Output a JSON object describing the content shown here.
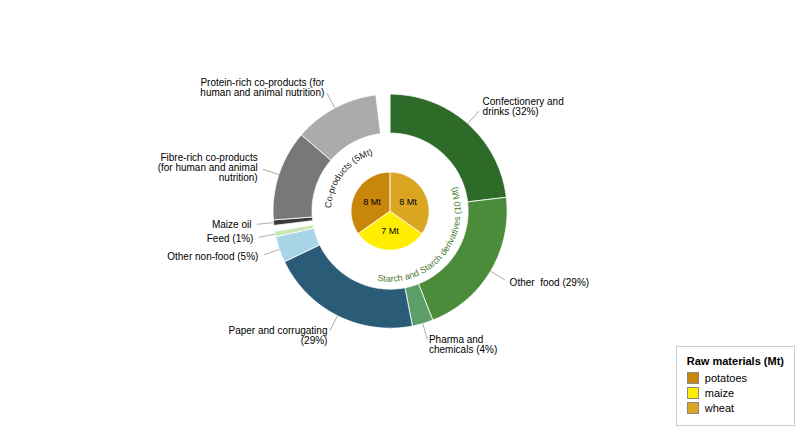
{
  "chart_data": {
    "type": "nested_pie",
    "legend": "lower right",
    "series": [
      {
        "name": "Raw materials (Mt)",
        "categories": [
          "potatoes",
          "maize",
          "wheat"
        ],
        "values": [
          8,
          7,
          8
        ],
        "value_labels": [
          "8 Mt",
          "7 Mt",
          "8 Mt"
        ],
        "data_labels": true,
        "colors": [
          "#C8860A",
          "#FFEE00",
          "#DAA520"
        ]
      },
      {
        "name": "Starch and Starch derivatives (10 Mt)",
        "color": "#4A7A30",
        "categories": [
          "Confectionery and\ndrinks (32%)",
          "Other  food (29%)",
          "Pharma and\nchemicals (4%)",
          "Paper and corrugating\n(29%)",
          "Other non-food (5%)",
          "Feed (1%)"
        ],
        "values": [
          32,
          29,
          4,
          29,
          5,
          1
        ],
        "colors": [
          "#2E6B28",
          "#4A8C3A",
          "#5B9E6A",
          "#2A5C78",
          "#A8D4E8",
          "#C8E8B0"
        ]
      },
      {
        "name": "Co-products (5Mt)",
        "color": "#222222",
        "categories": [
          "Maize oil",
          "Fibre-rich co-products\n(for human and animal\nnutrition)",
          "Protein-rich co-products (for\nhuman and animal nutrition)"
        ],
        "values": [
          3,
          50,
          47
        ],
        "colors": [
          "#3A3A3A",
          "#787878",
          "#ABABAB"
        ]
      }
    ]
  }
}
